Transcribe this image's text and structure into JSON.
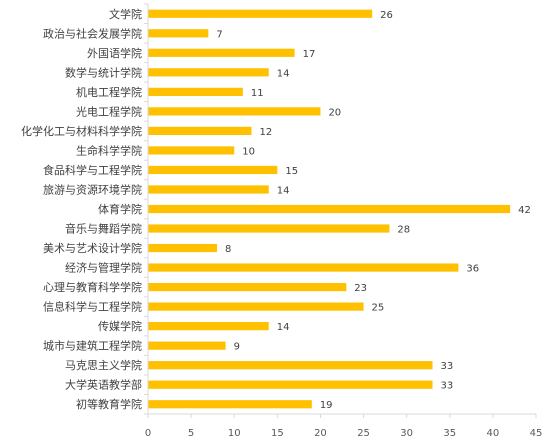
{
  "chart_data": {
    "type": "bar",
    "orientation": "horizontal",
    "categories": [
      "文学院",
      "政治与社会发展学院",
      "外国语学院",
      "数学与统计学院",
      "机电工程学院",
      "光电工程学院",
      "化学化工与材料科学学院",
      "生命科学学院",
      "食品科学与工程学院",
      "旅游与资源环境学院",
      "体育学院",
      "音乐与舞蹈学院",
      "美术与艺术设计学院",
      "经济与管理学院",
      "心理与教育科学学院",
      "信息科学与工程学院",
      "传媒学院",
      "城市与建筑工程学院",
      "马克思主义学院",
      "大学英语教学部",
      "初等教育学院"
    ],
    "values": [
      26,
      7,
      17,
      14,
      11,
      20,
      12,
      10,
      15,
      14,
      42,
      28,
      8,
      36,
      23,
      25,
      14,
      9,
      33,
      33,
      19
    ],
    "xlim": [
      0,
      45
    ],
    "xticks": [
      0,
      5,
      10,
      15,
      20,
      25,
      30,
      35,
      40,
      45
    ],
    "title": "",
    "xlabel": "",
    "ylabel": "",
    "grid": false,
    "legend": "none",
    "bar_color": "#FFC000",
    "axis_color": "#D9D9D9",
    "text_color": "#404040"
  }
}
